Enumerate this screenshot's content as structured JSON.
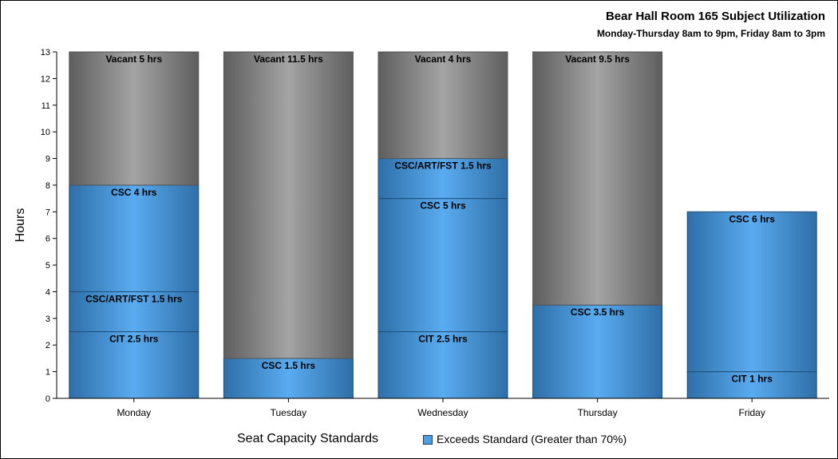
{
  "chart_data": {
    "type": "bar",
    "stacked": true,
    "title": "Bear Hall Room 165 Subject Utilization",
    "subtitle": "Monday-Thursday 8am to 9pm, Friday 8am to 3pm",
    "ylabel": "Hours",
    "xlabel": "",
    "ylim": [
      0,
      13
    ],
    "yticks": [
      0,
      1,
      2,
      3,
      4,
      5,
      6,
      7,
      8,
      9,
      10,
      11,
      12,
      13
    ],
    "categories": [
      "Monday",
      "Tuesday",
      "Wednesday",
      "Thursday",
      "Friday"
    ],
    "bars": [
      {
        "category": "Monday",
        "segments": [
          {
            "label": "CIT 2.5 hrs",
            "value": 2.5,
            "kind": "exceeds"
          },
          {
            "label": "CSC/ART/FST 1.5 hrs",
            "value": 1.5,
            "kind": "exceeds"
          },
          {
            "label": "CSC 4 hrs",
            "value": 4,
            "kind": "exceeds"
          },
          {
            "label": "Vacant 5 hrs",
            "value": 5,
            "kind": "vacant"
          }
        ]
      },
      {
        "category": "Tuesday",
        "segments": [
          {
            "label": "CSC 1.5 hrs",
            "value": 1.5,
            "kind": "exceeds"
          },
          {
            "label": "Vacant 11.5 hrs",
            "value": 11.5,
            "kind": "vacant"
          }
        ]
      },
      {
        "category": "Wednesday",
        "segments": [
          {
            "label": "CIT 2.5 hrs",
            "value": 2.5,
            "kind": "exceeds"
          },
          {
            "label": "CSC 5 hrs",
            "value": 5,
            "kind": "exceeds"
          },
          {
            "label": "CSC/ART/FST 1.5 hrs",
            "value": 1.5,
            "kind": "exceeds"
          },
          {
            "label": "Vacant 4 hrs",
            "value": 4,
            "kind": "vacant"
          }
        ]
      },
      {
        "category": "Thursday",
        "segments": [
          {
            "label": "CSC 3.5 hrs",
            "value": 3.5,
            "kind": "exceeds"
          },
          {
            "label": "Vacant 9.5 hrs",
            "value": 9.5,
            "kind": "vacant"
          }
        ]
      },
      {
        "category": "Friday",
        "segments": [
          {
            "label": "CIT 1 hrs",
            "value": 1,
            "kind": "exceeds"
          },
          {
            "label": "CSC 6 hrs",
            "value": 6,
            "kind": "exceeds"
          }
        ]
      }
    ],
    "legend": {
      "title": "Seat Capacity Standards",
      "entries": [
        {
          "label": "Exceeds Standard (Greater than 70%)",
          "kind": "exceeds"
        }
      ],
      "position": "bottom"
    },
    "colors": {
      "exceeds_edge": "#2e6fa8",
      "exceeds_mid": "#5aabf0",
      "vacant_edge": "#5e5e5e",
      "vacant_mid": "#a4a4a4",
      "exceeds_border": "#1f4e79",
      "vacant_border": "#555555"
    },
    "grid": false
  }
}
